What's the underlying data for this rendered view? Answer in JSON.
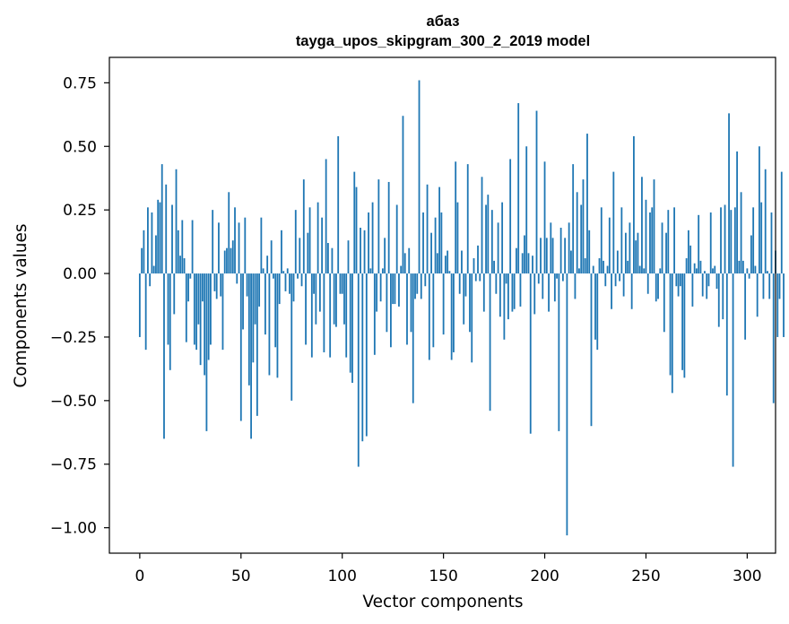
{
  "chart_data": {
    "type": "bar",
    "title": "абаз",
    "subtitle": "tayga_upos_skipgram_300_2_2019 model",
    "xlabel": "Vector components",
    "ylabel": "Components values",
    "xlim": [
      -15,
      314
    ],
    "ylim": [
      -1.1,
      0.85
    ],
    "xticks": [
      0,
      50,
      100,
      150,
      200,
      250,
      300
    ],
    "xtick_labels": [
      "0",
      "50",
      "100",
      "150",
      "200",
      "250",
      "300"
    ],
    "yticks": [
      -1.0,
      -0.75,
      -0.5,
      -0.25,
      0.0,
      0.25,
      0.5,
      0.75
    ],
    "ytick_labels": [
      "−1.00",
      "−0.75",
      "−0.50",
      "−0.25",
      "0.00",
      "0.25",
      "0.50",
      "0.75"
    ],
    "grid": false,
    "bar_color": "#1f77b4",
    "series": [
      {
        "x_start": 0,
        "values": [
          -0.25,
          0.1,
          0.17,
          -0.3,
          0.26,
          -0.05,
          0.24,
          0.03,
          0.15,
          0.29,
          0.28,
          0.43,
          -0.65,
          0.35,
          -0.28,
          -0.38,
          0.27,
          -0.16,
          0.41,
          0.17,
          0.07,
          0.21,
          0.06,
          -0.27,
          -0.11,
          -0.02,
          0.21,
          -0.28,
          -0.3,
          -0.2,
          -0.36,
          -0.11,
          -0.4,
          -0.62,
          -0.34,
          -0.28,
          0.25,
          -0.07,
          -0.1,
          0.2,
          -0.09,
          -0.3,
          0.09,
          0.1,
          0.32,
          0.1,
          0.13,
          0.26,
          -0.04,
          0.2,
          -0.58,
          -0.22,
          0.22,
          -0.09,
          -0.44,
          -0.65,
          -0.35,
          -0.2,
          -0.56,
          -0.13,
          0.22,
          0.02,
          -0.24,
          0.07,
          -0.4,
          0.13,
          -0.02,
          -0.29,
          -0.41,
          -0.12,
          0.17,
          0.01,
          -0.07,
          0.02,
          -0.08,
          -0.5,
          -0.11,
          0.25,
          -0.02,
          0.14,
          -0.05,
          0.37,
          -0.28,
          0.16,
          0.26,
          -0.33,
          -0.08,
          -0.2,
          0.28,
          -0.15,
          0.22,
          -0.31,
          0.45,
          0.12,
          -0.33,
          0.1,
          -0.2,
          -0.21,
          0.54,
          -0.08,
          -0.08,
          -0.2,
          -0.33,
          0.13,
          -0.39,
          -0.43,
          0.4,
          0.34,
          -0.76,
          0.18,
          -0.66,
          0.17,
          -0.64,
          0.24,
          0.02,
          0.28,
          -0.32,
          -0.15,
          0.37,
          -0.11,
          0.02,
          0.14,
          -0.23,
          0.36,
          -0.29,
          -0.12,
          -0.12,
          0.27,
          -0.13,
          0.03,
          0.62,
          0.08,
          -0.28,
          0.1,
          -0.23,
          -0.51,
          -0.1,
          -0.08,
          0.76,
          -0.1,
          0.24,
          -0.05,
          0.35,
          -0.34,
          0.16,
          -0.29,
          0.22,
          0.08,
          0.34,
          0.24,
          -0.24,
          0.07,
          0.09,
          0.01,
          -0.34,
          -0.31,
          0.44,
          0.28,
          -0.08,
          0.09,
          -0.2,
          -0.09,
          0.43,
          -0.23,
          -0.35,
          0.06,
          -0.03,
          0.11,
          -0.03,
          0.38,
          -0.15,
          0.27,
          0.31,
          -0.54,
          0.25,
          0.05,
          -0.08,
          0.2,
          -0.17,
          0.28,
          -0.26,
          -0.04,
          -0.18,
          0.45,
          -0.15,
          -0.14,
          0.1,
          0.67,
          -0.13,
          0.08,
          0.15,
          0.5,
          0.08,
          -0.63,
          0.07,
          -0.16,
          0.64,
          -0.04,
          0.14,
          -0.1,
          0.44,
          0.14,
          -0.15,
          0.2,
          0.14,
          -0.11,
          -0.02,
          -0.62,
          0.18,
          -0.03,
          0.14,
          -1.03,
          0.2,
          0.09,
          0.43,
          -0.1,
          0.32,
          0.02,
          0.27,
          0.37,
          0.06,
          0.55,
          0.17,
          -0.6,
          0.03,
          -0.26,
          -0.3,
          0.06,
          0.26,
          0.05,
          -0.05,
          0.03,
          0.22,
          -0.14,
          0.4,
          -0.05,
          0.09,
          -0.03,
          0.26,
          -0.09,
          0.16,
          0.05,
          0.2,
          -0.14,
          0.54,
          0.13,
          0.16,
          0.03,
          0.38,
          0.02,
          0.29,
          -0.08,
          0.24,
          0.26,
          0.37,
          -0.11,
          -0.1,
          0.02,
          0.2,
          -0.23,
          0.16,
          0.25,
          -0.4,
          -0.47,
          0.26,
          -0.05,
          -0.09,
          -0.05,
          -0.38,
          -0.41,
          0.06,
          0.17,
          0.11,
          -0.13,
          0.04,
          0.02,
          0.23,
          0.05,
          -0.09,
          0.01,
          -0.1,
          -0.05,
          0.24,
          0.02,
          0.03,
          -0.06,
          -0.21,
          0.26,
          -0.18,
          0.27,
          -0.48,
          0.63,
          0.25,
          -0.76,
          0.26,
          0.48,
          0.05,
          0.32,
          0.05,
          -0.26,
          0.02,
          -0.02,
          0.15,
          0.26,
          0.03,
          -0.17,
          0.5,
          0.28,
          -0.1,
          0.41,
          0.01,
          -0.1,
          0.24,
          -0.51,
          0.09,
          -0.25,
          -0.1,
          0.4,
          -0.25
        ]
      }
    ]
  }
}
